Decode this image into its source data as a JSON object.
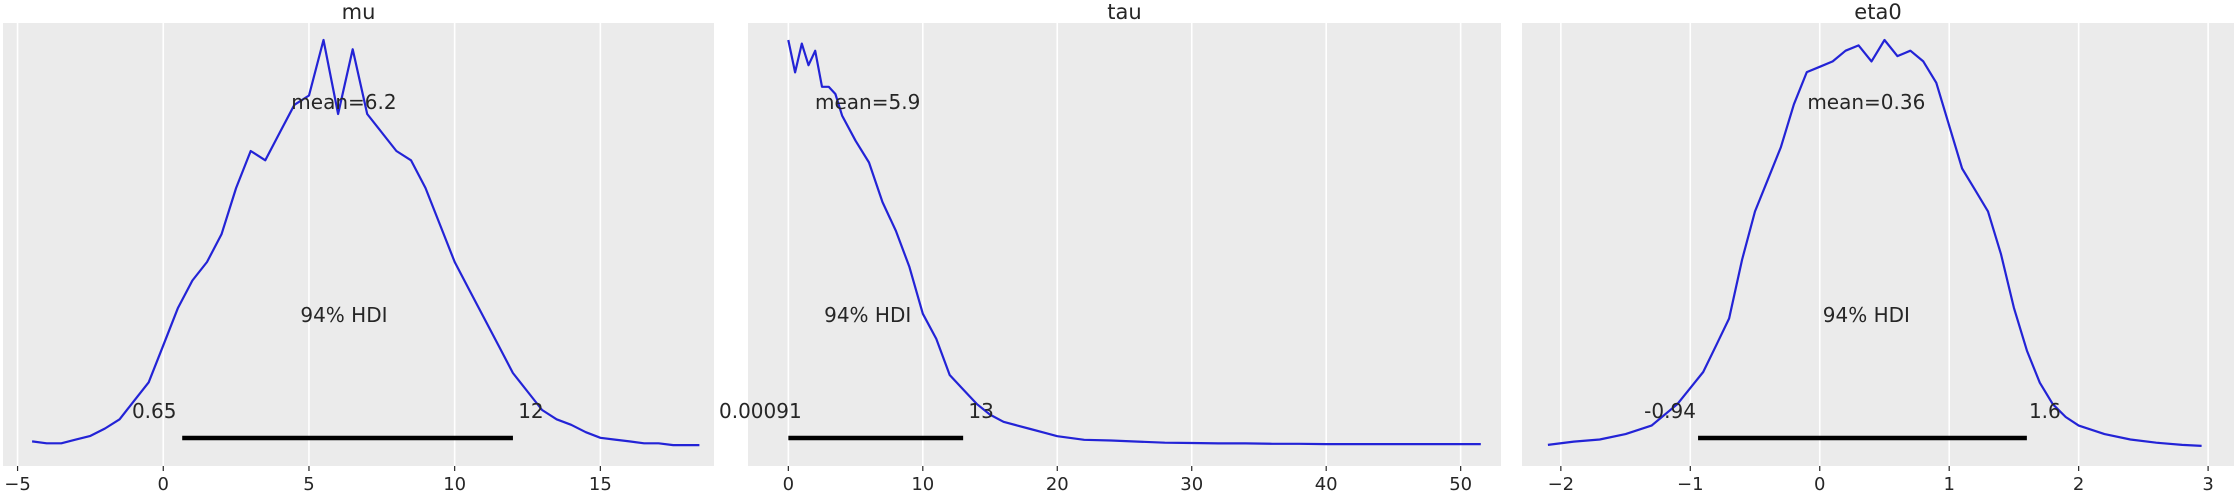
{
  "chart_data": [
    {
      "type": "line",
      "title": "mu",
      "xlim": [
        -5.5,
        18.9
      ],
      "xticks": [
        -5,
        0,
        5,
        10,
        15
      ],
      "xtick_labels": [
        "−5",
        "0",
        "5",
        "10",
        "15"
      ],
      "grid": true,
      "series": [
        {
          "x": [
            -4.5,
            -4,
            -3.5,
            -3,
            -2.5,
            -2,
            -1.5,
            -1,
            -0.5,
            0,
            0.5,
            1,
            1.5,
            2,
            2.5,
            3,
            3.5,
            4,
            4.5,
            5,
            5.5,
            6,
            6.5,
            7,
            7.5,
            8,
            8.5,
            9,
            9.5,
            10,
            10.5,
            11,
            11.5,
            12,
            12.5,
            13,
            13.5,
            14,
            14.5,
            15,
            15.5,
            16,
            16.5,
            17,
            17.5,
            18,
            18.4
          ],
          "y": [
            0.003,
            0.002,
            0.002,
            0.004,
            0.006,
            0.01,
            0.015,
            0.025,
            0.035,
            0.055,
            0.075,
            0.09,
            0.1,
            0.115,
            0.14,
            0.16,
            0.155,
            0.17,
            0.185,
            0.19,
            0.22,
            0.18,
            0.215,
            0.18,
            0.17,
            0.16,
            0.155,
            0.14,
            0.12,
            0.1,
            0.085,
            0.07,
            0.055,
            0.04,
            0.03,
            0.02,
            0.015,
            0.012,
            0.008,
            0.005,
            0.004,
            0.003,
            0.002,
            0.002,
            0.001,
            0.001,
            0.001
          ]
        }
      ],
      "mean_label": "mean=6.2",
      "hdi_label": "94% HDI",
      "hdi": [
        0.65,
        12
      ],
      "hdi_labels": [
        "0.65",
        "12"
      ]
    },
    {
      "type": "line",
      "title": "tau",
      "xlim": [
        -3,
        53
      ],
      "xticks": [
        0,
        10,
        20,
        30,
        40,
        50
      ],
      "xtick_labels": [
        "0",
        "10",
        "20",
        "30",
        "40",
        "50"
      ],
      "grid": true,
      "series": [
        {
          "x": [
            0,
            0.5,
            1,
            1.5,
            2,
            2.5,
            3,
            3.5,
            4,
            5,
            6,
            7,
            8,
            9,
            10,
            11,
            12,
            13,
            14,
            15,
            16,
            17,
            18,
            19,
            20,
            22,
            24,
            26,
            28,
            30,
            32,
            34,
            36,
            38,
            40,
            42,
            44,
            46,
            48,
            50,
            51.5
          ],
          "y": [
            0.113,
            0.104,
            0.112,
            0.106,
            0.11,
            0.1,
            0.1,
            0.098,
            0.092,
            0.085,
            0.079,
            0.068,
            0.06,
            0.05,
            0.037,
            0.03,
            0.02,
            0.016,
            0.012,
            0.009,
            0.007,
            0.006,
            0.005,
            0.004,
            0.003,
            0.002,
            0.0018,
            0.0015,
            0.0012,
            0.0011,
            0.001,
            0.001,
            0.0009,
            0.0009,
            0.0008,
            0.0008,
            0.0008,
            0.0008,
            0.0008,
            0.0008,
            0.0008
          ]
        }
      ],
      "mean_label": "mean=5.9",
      "hdi_label": "94% HDI",
      "hdi": [
        0.00091,
        13
      ],
      "hdi_labels": [
        "0.00091",
        "13"
      ]
    },
    {
      "type": "line",
      "title": "eta0",
      "xlim": [
        -2.3,
        3.2
      ],
      "xticks": [
        -2,
        -1,
        0,
        1,
        2,
        3
      ],
      "xtick_labels": [
        "−2",
        "−1",
        "0",
        "1",
        "2",
        "3"
      ],
      "grid": true,
      "series": [
        {
          "x": [
            -2.1,
            -1.9,
            -1.7,
            -1.5,
            -1.3,
            -1.1,
            -0.9,
            -0.8,
            -0.7,
            -0.6,
            -0.5,
            -0.4,
            -0.3,
            -0.2,
            -0.1,
            0,
            0.1,
            0.2,
            0.3,
            0.4,
            0.5,
            0.6,
            0.7,
            0.8,
            0.9,
            1,
            1.1,
            1.2,
            1.3,
            1.4,
            1.5,
            1.6,
            1.7,
            1.8,
            1.9,
            2.0,
            2.2,
            2.4,
            2.6,
            2.8,
            2.95
          ],
          "y": [
            0.002,
            0.005,
            0.007,
            0.012,
            0.02,
            0.04,
            0.07,
            0.095,
            0.12,
            0.175,
            0.22,
            0.25,
            0.28,
            0.32,
            0.35,
            0.355,
            0.36,
            0.37,
            0.375,
            0.36,
            0.38,
            0.365,
            0.37,
            0.36,
            0.34,
            0.3,
            0.26,
            0.24,
            0.22,
            0.18,
            0.13,
            0.09,
            0.06,
            0.04,
            0.028,
            0.02,
            0.012,
            0.007,
            0.004,
            0.002,
            0.001
          ]
        }
      ],
      "mean_label": "mean=0.36",
      "hdi_label": "94% HDI",
      "hdi": [
        -0.94,
        1.6
      ],
      "hdi_labels": [
        "-0.94",
        "1.6"
      ]
    }
  ],
  "colors": {
    "density": "#2323d6",
    "panel_background": "#ebebeb",
    "grid": "#ffffff",
    "hdi_bar": "#000000",
    "text": "#262626"
  }
}
